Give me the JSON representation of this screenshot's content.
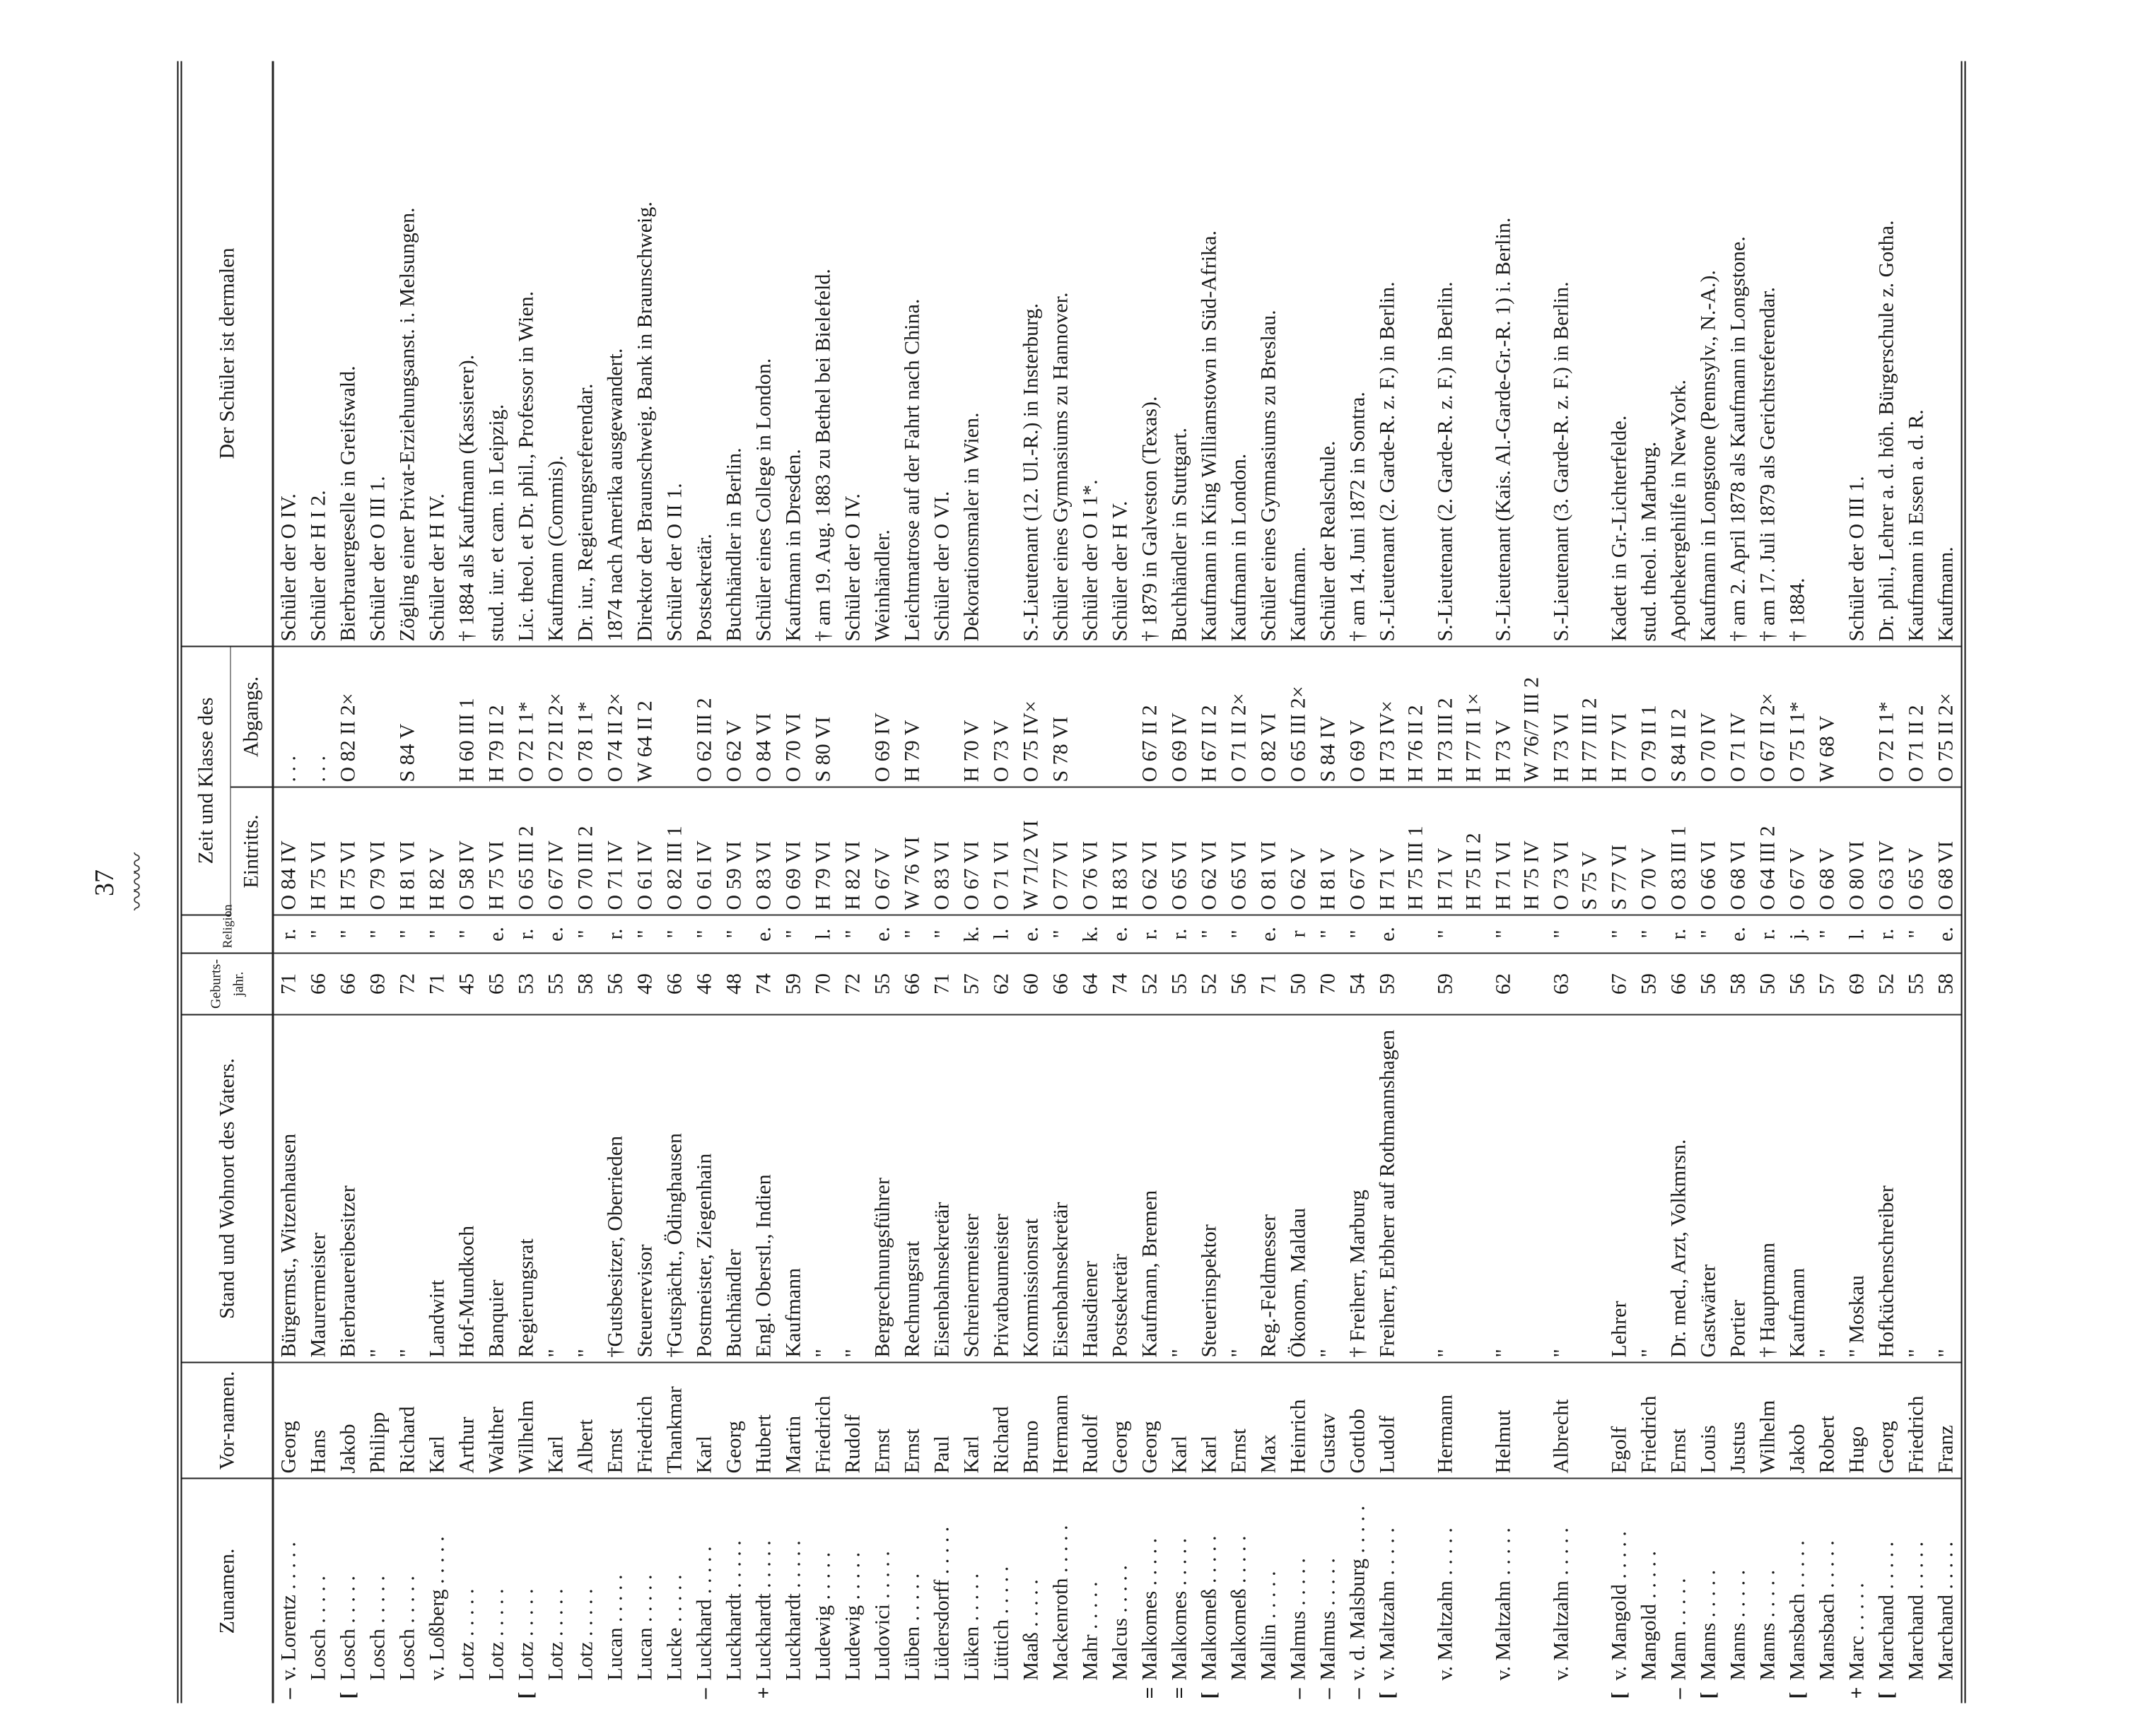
{
  "page_number": "37",
  "headers": {
    "zunamen": "Zunamen.",
    "vornamen": "Vor-namen.",
    "stand": "Stand und Wohnort des Vaters.",
    "geburtsjahr": "Geburts-jahr.",
    "religion": "Religion",
    "zeit": "Zeit und Klasse des",
    "eintritt": "Eintritts.",
    "abgang": "Abgangs.",
    "dermalen": "Der Schüler ist dermalen"
  },
  "rows": [
    {
      "mark": "–",
      "zuname": "v. Lorentz",
      "vorname": "Georg",
      "stand": "Bürgermst., Witzenhausen",
      "jahr": "71",
      "rel": "r.",
      "eintritt": [
        "O 84 IV"
      ],
      "abgang": [
        ". . ."
      ],
      "dermalen": "Schüler der O IV."
    },
    {
      "mark": "",
      "zuname": "Losch",
      "vorname": "Hans",
      "stand": "Maurermeister",
      "jahr": "66",
      "rel": "\"",
      "eintritt": [
        "H 75 VI"
      ],
      "abgang": [
        ". . ."
      ],
      "dermalen": "Schüler der H I 2."
    },
    {
      "mark": "[",
      "zuname": "Losch",
      "vorname": "Jakob",
      "stand": "Bierbrauereibesitzer",
      "jahr": "66",
      "rel": "\"",
      "eintritt": [
        "H 75 VI"
      ],
      "abgang": [
        "O 82 II 2×"
      ],
      "dermalen": "Bierbrauergeselle in Greifswald."
    },
    {
      "mark": "",
      "zuname": "Losch",
      "vorname": "Philipp",
      "stand": "\"",
      "jahr": "69",
      "rel": "\"",
      "eintritt": [
        "O 79 VI"
      ],
      "abgang": [
        ""
      ],
      "dermalen": "Schüler der O III 1."
    },
    {
      "mark": "",
      "zuname": "Losch",
      "vorname": "Richard",
      "stand": "\"",
      "jahr": "72",
      "rel": "\"",
      "eintritt": [
        "H 81 VI"
      ],
      "abgang": [
        "S 84 V"
      ],
      "dermalen": "Zögling einer Privat-Erziehungsanst. i. Melsungen."
    },
    {
      "mark": "",
      "zuname": "v. Loßberg",
      "vorname": "Karl",
      "stand": "Landwirt",
      "jahr": "71",
      "rel": "\"",
      "eintritt": [
        "H 82 V"
      ],
      "abgang": [
        ""
      ],
      "dermalen": "Schüler der H IV."
    },
    {
      "mark": "",
      "zuname": "Lotz",
      "vorname": "Arthur",
      "stand": "Hof-Mundkoch",
      "jahr": "45",
      "rel": "\"",
      "eintritt": [
        "O 58 IV"
      ],
      "abgang": [
        "H 60 III 1"
      ],
      "dermalen": "† 1884 als Kaufmann (Kassierer)."
    },
    {
      "mark": "",
      "zuname": "Lotz",
      "vorname": "Walther",
      "stand": "Banquier",
      "jahr": "65",
      "rel": "e.",
      "eintritt": [
        "H 75 VI"
      ],
      "abgang": [
        "H 79 II 2"
      ],
      "dermalen": "stud. iur. et cam. in Leipzig."
    },
    {
      "mark": "[",
      "zuname": "Lotz",
      "vorname": "Wilhelm",
      "stand": "Regierungsrat",
      "jahr": "53",
      "rel": "r.",
      "eintritt": [
        "O 65 III 2"
      ],
      "abgang": [
        "O 72 I 1*"
      ],
      "dermalen": "Lic. theol. et Dr. phil., Professor in Wien."
    },
    {
      "mark": "",
      "zuname": "Lotz",
      "vorname": "Karl",
      "stand": "\"",
      "jahr": "55",
      "rel": "e.",
      "eintritt": [
        "O 67 IV"
      ],
      "abgang": [
        "O 72 II 2×"
      ],
      "dermalen": "Kaufmann (Commis)."
    },
    {
      "mark": "",
      "zuname": "Lotz",
      "vorname": "Albert",
      "stand": "\"",
      "jahr": "58",
      "rel": "\"",
      "eintritt": [
        "O 70 III 2"
      ],
      "abgang": [
        "O 78 I 1*"
      ],
      "dermalen": "Dr. iur., Regierungsreferendar."
    },
    {
      "mark": "",
      "zuname": "Lucan",
      "vorname": "Ernst",
      "stand": "†Gutsbesitzer, Oberrieden",
      "jahr": "56",
      "rel": "r.",
      "eintritt": [
        "O 71 IV"
      ],
      "abgang": [
        "O 74 II 2×"
      ],
      "dermalen": "1874 nach Amerika ausgewandert."
    },
    {
      "mark": "",
      "zuname": "Lucan",
      "vorname": "Friedrich",
      "stand": "Steuerrevisor",
      "jahr": "49",
      "rel": "\"",
      "eintritt": [
        "O 61 IV"
      ],
      "abgang": [
        "W 64 II 2"
      ],
      "dermalen": "Direktor der Braunschweig. Bank in Braunschweig."
    },
    {
      "mark": "",
      "zuname": "Lucke",
      "vorname": "Thankmar",
      "stand": "†Gutspächt., Ödinghausen",
      "jahr": "66",
      "rel": "\"",
      "eintritt": [
        "O 82 III 1"
      ],
      "abgang": [
        ""
      ],
      "dermalen": "Schüler der O II 1."
    },
    {
      "mark": "–",
      "zuname": "Luckhard",
      "vorname": "Karl",
      "stand": "Postmeister, Ziegenhain",
      "jahr": "46",
      "rel": "\"",
      "eintritt": [
        "O 61 IV"
      ],
      "abgang": [
        "O 62 III 2"
      ],
      "dermalen": "Postsekretär."
    },
    {
      "mark": "",
      "zuname": "Luckhardt",
      "vorname": "Georg",
      "stand": "Buchhändler",
      "jahr": "48",
      "rel": "\"",
      "eintritt": [
        "O 59 VI"
      ],
      "abgang": [
        "O 62 V"
      ],
      "dermalen": "Buchhändler in Berlin."
    },
    {
      "mark": "+",
      "zuname": "Luckhardt",
      "vorname": "Hubert",
      "stand": "Engl. Oberstl., Indien",
      "jahr": "74",
      "rel": "e.",
      "eintritt": [
        "O 83 VI"
      ],
      "abgang": [
        "O 84 VI"
      ],
      "dermalen": "Schüler eines College in London."
    },
    {
      "mark": "",
      "zuname": "Luckhardt",
      "vorname": "Martin",
      "stand": "Kaufmann",
      "jahr": "59",
      "rel": "\"",
      "eintritt": [
        "O 69 VI"
      ],
      "abgang": [
        "O 70 VI"
      ],
      "dermalen": "Kaufmann in Dresden."
    },
    {
      "mark": "",
      "zuname": "Ludewig",
      "vorname": "Friedrich",
      "stand": "\"",
      "jahr": "70",
      "rel": "l.",
      "eintritt": [
        "H 79 VI"
      ],
      "abgang": [
        "S 80 VI"
      ],
      "dermalen": "† am 19. Aug. 1883 zu Bethel bei Bielefeld."
    },
    {
      "mark": "",
      "zuname": "Ludewig",
      "vorname": "Rudolf",
      "stand": "\"",
      "jahr": "72",
      "rel": "\"",
      "eintritt": [
        "H 82 VI"
      ],
      "abgang": [
        ""
      ],
      "dermalen": "Schüler der O IV."
    },
    {
      "mark": "",
      "zuname": "Ludovici",
      "vorname": "Ernst",
      "stand": "Bergrechnungsführer",
      "jahr": "55",
      "rel": "e.",
      "eintritt": [
        "O 67 V"
      ],
      "abgang": [
        "O 69 IV"
      ],
      "dermalen": "Weinhändler."
    },
    {
      "mark": "",
      "zuname": "Lüben",
      "vorname": "Ernst",
      "stand": "Rechnungsrat",
      "jahr": "66",
      "rel": "\"",
      "eintritt": [
        "W 76 VI"
      ],
      "abgang": [
        "H 79 V"
      ],
      "dermalen": "Leichtmatrose auf der Fahrt nach China."
    },
    {
      "mark": "",
      "zuname": "Lüdersdorff",
      "vorname": "Paul",
      "stand": "Eisenbahnsekretär",
      "jahr": "71",
      "rel": "\"",
      "eintritt": [
        "O 83 VI"
      ],
      "abgang": [
        ""
      ],
      "dermalen": "Schüler der O VI."
    },
    {
      "mark": "",
      "zuname": "Lüken",
      "vorname": "Karl",
      "stand": "Schreinermeister",
      "jahr": "57",
      "rel": "k.",
      "eintritt": [
        "O 67 VI"
      ],
      "abgang": [
        "H 70 V"
      ],
      "dermalen": "Dekorationsmaler in Wien."
    },
    {
      "mark": "",
      "zuname": "Lüttich",
      "vorname": "Richard",
      "stand": "Privatbaumeister",
      "jahr": "62",
      "rel": "l.",
      "eintritt": [
        "O 71 VI"
      ],
      "abgang": [
        "O 73 V"
      ],
      "dermalen": ""
    },
    {
      "mark": "",
      "zuname": "Maaß",
      "vorname": "Bruno",
      "stand": "Kommissionsrat",
      "jahr": "60",
      "rel": "e.",
      "eintritt": [
        "W 71/2 VI"
      ],
      "abgang": [
        "O 75 IV×"
      ],
      "dermalen": "S.-Lieutenant (12. Ul.-R.) in Insterburg."
    },
    {
      "mark": "",
      "zuname": "Mackenroth",
      "vorname": "Hermann",
      "stand": "Eisenbahnsekretär",
      "jahr": "66",
      "rel": "\"",
      "eintritt": [
        "O 77 VI"
      ],
      "abgang": [
        "S 78 VI"
      ],
      "dermalen": "Schüler eines Gymnasiums zu Hannover."
    },
    {
      "mark": "",
      "zuname": "Mahr",
      "vorname": "Rudolf",
      "stand": "Hausdiener",
      "jahr": "64",
      "rel": "k.",
      "eintritt": [
        "O 76 VI"
      ],
      "abgang": [
        ""
      ],
      "dermalen": "Schüler der O I 1*."
    },
    {
      "mark": "",
      "zuname": "Malcus",
      "vorname": "Georg",
      "stand": "Postsekretär",
      "jahr": "74",
      "rel": "e.",
      "eintritt": [
        "H 83 VI"
      ],
      "abgang": [
        ""
      ],
      "dermalen": "Schüler der H V."
    },
    {
      "mark": "=",
      "zuname": "Malkomes",
      "vorname": "Georg",
      "stand": "Kaufmann, Bremen",
      "jahr": "52",
      "rel": "r.",
      "eintritt": [
        "O 62 VI"
      ],
      "abgang": [
        "O 67 II 2"
      ],
      "dermalen": "† 1879 in Galveston (Texas)."
    },
    {
      "mark": "=",
      "zuname": "Malkomes",
      "vorname": "Karl",
      "stand": "\"",
      "jahr": "55",
      "rel": "r.",
      "eintritt": [
        "O 65 VI"
      ],
      "abgang": [
        "O 69 IV"
      ],
      "dermalen": "Buchhändler in Stuttgart."
    },
    {
      "mark": "[",
      "zuname": "Malkomeß",
      "vorname": "Karl",
      "stand": "Steuerinspektor",
      "jahr": "52",
      "rel": "\"",
      "eintritt": [
        "O 62 VI"
      ],
      "abgang": [
        "H 67 II 2"
      ],
      "dermalen": "Kaufmann in King Williamstown in Süd-Afrika."
    },
    {
      "mark": "",
      "zuname": "Malkomeß",
      "vorname": "Ernst",
      "stand": "\"",
      "jahr": "56",
      "rel": "\"",
      "eintritt": [
        "O 65 VI"
      ],
      "abgang": [
        "O 71 II 2×"
      ],
      "dermalen": "Kaufmann in London."
    },
    {
      "mark": "",
      "zuname": "Mallin",
      "vorname": "Max",
      "stand": "Reg.-Feldmesser",
      "jahr": "71",
      "rel": "e.",
      "eintritt": [
        "O 81 VI"
      ],
      "abgang": [
        "O 82 VI"
      ],
      "dermalen": "Schüler eines Gymnasiums zu Breslau."
    },
    {
      "mark": "–",
      "zuname": "Malmus",
      "vorname": "Heinrich",
      "stand": "Ökonom, Maldau",
      "jahr": "50",
      "rel": "r",
      "eintritt": [
        "O 62 V"
      ],
      "abgang": [
        "O 65 III 2×"
      ],
      "dermalen": "Kaufmann."
    },
    {
      "mark": "–",
      "zuname": "Malmus",
      "vorname": "Gustav",
      "stand": "\"",
      "jahr": "70",
      "rel": "\"",
      "eintritt": [
        "H 81 V"
      ],
      "abgang": [
        "S 84 IV"
      ],
      "dermalen": "Schüler der Realschule."
    },
    {
      "mark": "–",
      "zuname": "v. d. Malsburg",
      "vorname": "Gottlob",
      "stand": "† Freiherr, Marburg",
      "jahr": "54",
      "rel": "\"",
      "eintritt": [
        "O 67 V"
      ],
      "abgang": [
        "O 69 V"
      ],
      "dermalen": "† am 14. Juni 1872 in Sontra."
    },
    {
      "mark": "[",
      "zuname": "v. Maltzahn",
      "vorname": "Ludolf",
      "stand": "Freiherr, Erbherr auf Rothmannshagen",
      "jahr": "59",
      "rel": "e.",
      "eintritt": [
        "H 71 V",
        "H 75 III 1"
      ],
      "abgang": [
        "H 73 IV×",
        "H 76 II 2"
      ],
      "dermalen": "S.-Lieutenant (2. Garde-R. z. F.) in Berlin."
    },
    {
      "mark": "",
      "zuname": "v. Maltzahn",
      "vorname": "Hermann",
      "stand": "\"",
      "jahr": "59",
      "rel": "\"",
      "eintritt": [
        "H 71 V",
        "H 75 II 2"
      ],
      "abgang": [
        "H 73 III 2",
        "H 77 II 1×"
      ],
      "dermalen": "S.-Lieutenant (2. Garde-R. z. F.) in Berlin."
    },
    {
      "mark": "",
      "zuname": "v. Maltzahn",
      "vorname": "Helmut",
      "stand": "\"",
      "jahr": "62",
      "rel": "\"",
      "eintritt": [
        "H 71 VI",
        "H 75 IV"
      ],
      "abgang": [
        "H 73 V",
        "W 76/7 III 2"
      ],
      "dermalen": "S.-Lieutenant (Kais. Al.-Garde-Gr.-R. 1) i. Berlin."
    },
    {
      "mark": "",
      "zuname": "v. Maltzahn",
      "vorname": "Albrecht",
      "stand": "\"",
      "jahr": "63",
      "rel": "\"",
      "eintritt": [
        "O 73 VI",
        "S 75 V"
      ],
      "abgang": [
        "H 73 VI",
        "H 77 III 2"
      ],
      "dermalen": "S.-Lieutenant (3. Garde-R. z. F.) in Berlin."
    },
    {
      "mark": "[",
      "zuname": "v. Mangold",
      "vorname": "Egolf",
      "stand": "Lehrer",
      "jahr": "67",
      "rel": "\"",
      "eintritt": [
        "S 77 VI"
      ],
      "abgang": [
        "H 77 VI"
      ],
      "dermalen": "Kadett in Gr.-Lichterfelde."
    },
    {
      "mark": "",
      "zuname": "Mangold",
      "vorname": "Friedrich",
      "stand": "\"",
      "jahr": "59",
      "rel": "\"",
      "eintritt": [
        "O 70 V"
      ],
      "abgang": [
        "O 79 II 1"
      ],
      "dermalen": "stud. theol. in Marburg."
    },
    {
      "mark": "–",
      "zuname": "Mann",
      "vorname": "Ernst",
      "stand": "Dr. med., Arzt, Volkmrsn.",
      "jahr": "66",
      "rel": "r.",
      "eintritt": [
        "O 83 III 1"
      ],
      "abgang": [
        "S 84 II 2"
      ],
      "dermalen": "Apothekergehilfe in NewYork."
    },
    {
      "mark": "[",
      "zuname": "Manns",
      "vorname": "Louis",
      "stand": "Gastwärter",
      "jahr": "56",
      "rel": "\"",
      "eintritt": [
        "O 66 VI"
      ],
      "abgang": [
        "O 70 IV"
      ],
      "dermalen": "Kaufmann in Longstone (Pennsylv., N.-A.)."
    },
    {
      "mark": "",
      "zuname": "Manns",
      "vorname": "Justus",
      "stand": "Portier",
      "jahr": "58",
      "rel": "e.",
      "eintritt": [
        "O 68 VI"
      ],
      "abgang": [
        "O 71 IV"
      ],
      "dermalen": "† am 2. April 1878 als Kaufmann in Longstone."
    },
    {
      "mark": "",
      "zuname": "Manns",
      "vorname": "Wilhelm",
      "stand": "† Hauptmann",
      "jahr": "50",
      "rel": "r.",
      "eintritt": [
        "O 64 III 2"
      ],
      "abgang": [
        "O 67 II 2×"
      ],
      "dermalen": "† am 17. Juli 1879 als Gerichtsreferendar."
    },
    {
      "mark": "[",
      "zuname": "Mansbach",
      "vorname": "Jakob",
      "stand": "Kaufmann",
      "jahr": "56",
      "rel": "j.",
      "eintritt": [
        "O 67 V"
      ],
      "abgang": [
        "O 75 I 1*"
      ],
      "dermalen": "† 1884."
    },
    {
      "mark": "",
      "zuname": "Mansbach",
      "vorname": "Robert",
      "stand": "\"",
      "jahr": "57",
      "rel": "\"",
      "eintritt": [
        "O 68 V"
      ],
      "abgang": [
        "W 68 V"
      ],
      "dermalen": ""
    },
    {
      "mark": "+",
      "zuname": "Marc",
      "vorname": "Hugo",
      "stand": "\" Moskau",
      "jahr": "69",
      "rel": "l.",
      "eintritt": [
        "O 80 VI"
      ],
      "abgang": [
        ""
      ],
      "dermalen": "Schüler der O III 1."
    },
    {
      "mark": "[",
      "zuname": "Marchand",
      "vorname": "Georg",
      "stand": "Hofküchenschreiber",
      "jahr": "52",
      "rel": "r.",
      "eintritt": [
        "O 63 IV"
      ],
      "abgang": [
        "O 72 I 1*"
      ],
      "dermalen": "Dr. phil., Lehrer a. d. höh. Bürgerschule z. Gotha."
    },
    {
      "mark": "",
      "zuname": "Marchand",
      "vorname": "Friedrich",
      "stand": "\"",
      "jahr": "55",
      "rel": "\"",
      "eintritt": [
        "O 65 V"
      ],
      "abgang": [
        "O 71 II 2"
      ],
      "dermalen": "Kaufmann in Essen a. d. R."
    },
    {
      "mark": "",
      "zuname": "Marchand",
      "vorname": "Franz",
      "stand": "\"",
      "jahr": "58",
      "rel": "e.",
      "eintritt": [
        "O 68 VI"
      ],
      "abgang": [
        "O 75 II 2×"
      ],
      "dermalen": "Kaufmann."
    }
  ]
}
